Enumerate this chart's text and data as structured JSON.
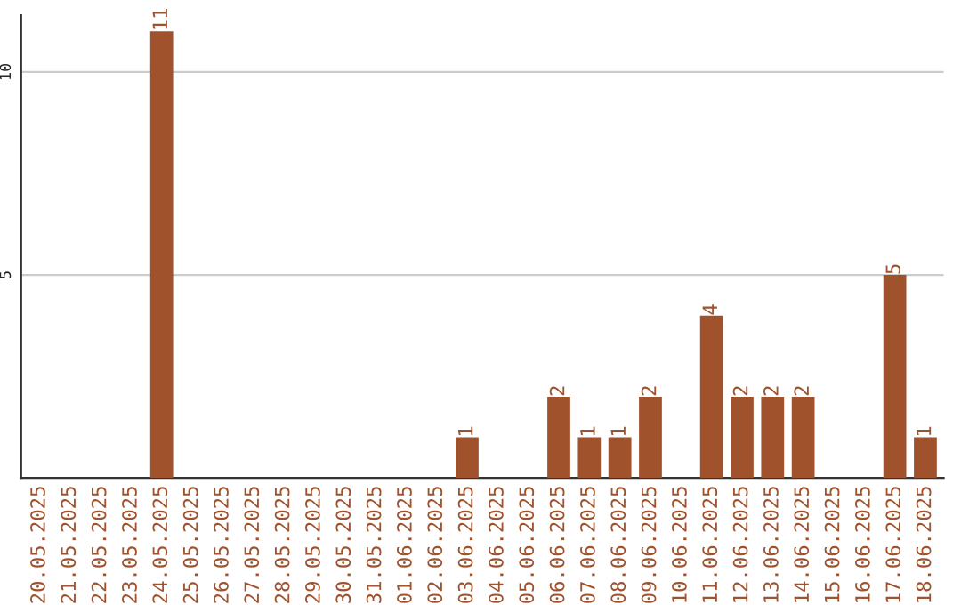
{
  "chart_data": {
    "type": "bar",
    "categories": [
      "20.05.2025",
      "21.05.2025",
      "22.05.2025",
      "23.05.2025",
      "24.05.2025",
      "25.05.2025",
      "26.05.2025",
      "27.05.2025",
      "28.05.2025",
      "29.05.2025",
      "30.05.2025",
      "31.05.2025",
      "01.06.2025",
      "02.06.2025",
      "03.06.2025",
      "04.06.2025",
      "05.06.2025",
      "06.06.2025",
      "07.06.2025",
      "08.06.2025",
      "09.06.2025",
      "10.06.2025",
      "11.06.2025",
      "12.06.2025",
      "13.06.2025",
      "14.06.2025",
      "15.06.2025",
      "16.06.2025",
      "17.06.2025",
      "18.06.2025"
    ],
    "values": [
      0,
      0,
      0,
      0,
      11,
      0,
      0,
      0,
      0,
      0,
      0,
      0,
      0,
      0,
      1,
      0,
      0,
      2,
      1,
      1,
      2,
      0,
      4,
      2,
      2,
      2,
      0,
      0,
      5,
      1
    ],
    "value_labels": [
      null,
      null,
      null,
      null,
      "11",
      null,
      null,
      null,
      null,
      null,
      null,
      null,
      null,
      null,
      "1",
      null,
      null,
      "2",
      "1",
      "1",
      "2",
      null,
      "4",
      "2",
      "2",
      "2",
      null,
      null,
      "5",
      "1"
    ],
    "color": "#a0522d",
    "ylim": [
      0,
      11.4
    ],
    "yticks": [
      5,
      10
    ],
    "grid": "y"
  }
}
